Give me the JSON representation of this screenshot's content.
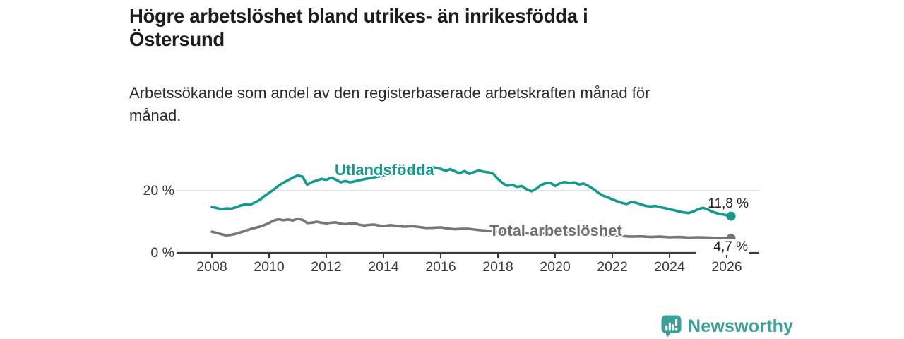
{
  "header": {
    "title_lines": [
      "Högre arbetslöshet bland utrikes- än inrikesfödda i",
      "Östersund"
    ],
    "subtitle_lines": [
      "Arbetssökande som andel av den registerbaserade arbetskraften månad för",
      "månad."
    ]
  },
  "chart_data": {
    "type": "line",
    "title": "Högre arbetslöshet bland utrikes- än inrikesfödda i Östersund",
    "subtitle": "Arbetssökande som andel av den registerbaserade arbetskraften månad för månad.",
    "xlabel": "",
    "ylabel": "",
    "y_unit": "%",
    "x_range": [
      2008,
      2026.2
    ],
    "ylim": [
      0,
      29
    ],
    "grid": "horizontal gridline at 20% only",
    "legend": "inline labels on lines with end-value annotations",
    "x_ticks": [
      {
        "year": 2008,
        "label": "2008"
      },
      {
        "year": 2010,
        "label": "2010"
      },
      {
        "year": 2012,
        "label": "2012"
      },
      {
        "year": 2014,
        "label": "2014"
      },
      {
        "year": 2016,
        "label": "2016"
      },
      {
        "year": 2018,
        "label": "2018"
      },
      {
        "year": 2020,
        "label": "2020"
      },
      {
        "year": 2022,
        "label": "2022"
      },
      {
        "year": 2024,
        "label": "2024"
      },
      {
        "year": 2026,
        "label": "2026"
      }
    ],
    "y_ticks": [
      {
        "value": 0,
        "label": "0 %"
      },
      {
        "value": 20,
        "label": "20 %"
      }
    ],
    "series": [
      {
        "name": "Utlandsfödda",
        "color": "#149a8d",
        "end_label": "11,8 %",
        "end_value": 11.8,
        "points": [
          [
            2008.0,
            14.8
          ],
          [
            2008.17,
            14.4
          ],
          [
            2008.33,
            14.1
          ],
          [
            2008.5,
            14.3
          ],
          [
            2008.67,
            14.2
          ],
          [
            2008.83,
            14.6
          ],
          [
            2009.0,
            15.2
          ],
          [
            2009.17,
            15.6
          ],
          [
            2009.33,
            15.4
          ],
          [
            2009.5,
            16.2
          ],
          [
            2009.67,
            17.0
          ],
          [
            2009.83,
            18.2
          ],
          [
            2010.0,
            19.3
          ],
          [
            2010.17,
            20.4
          ],
          [
            2010.33,
            21.6
          ],
          [
            2010.5,
            22.6
          ],
          [
            2010.67,
            23.4
          ],
          [
            2010.83,
            24.2
          ],
          [
            2011.0,
            24.9
          ],
          [
            2011.17,
            24.5
          ],
          [
            2011.33,
            21.9
          ],
          [
            2011.5,
            22.8
          ],
          [
            2011.67,
            23.3
          ],
          [
            2011.83,
            23.8
          ],
          [
            2012.0,
            23.5
          ],
          [
            2012.17,
            24.2
          ],
          [
            2012.33,
            23.6
          ],
          [
            2012.5,
            22.7
          ],
          [
            2012.67,
            23.1
          ],
          [
            2012.83,
            22.7
          ],
          [
            2013.0,
            23.0
          ],
          [
            2013.17,
            23.4
          ],
          [
            2013.33,
            23.7
          ],
          [
            2013.5,
            24.0
          ],
          [
            2013.67,
            24.3
          ],
          [
            2013.83,
            24.6
          ],
          [
            2014.0,
            24.9
          ],
          [
            2014.25,
            25.3
          ],
          [
            2014.5,
            25.7
          ],
          [
            2014.75,
            26.1
          ],
          [
            2015.0,
            26.4
          ],
          [
            2015.25,
            26.8
          ],
          [
            2015.5,
            27.1
          ],
          [
            2015.75,
            27.5
          ],
          [
            2016.0,
            27.0
          ],
          [
            2016.17,
            26.4
          ],
          [
            2016.33,
            26.9
          ],
          [
            2016.5,
            26.2
          ],
          [
            2016.67,
            25.6
          ],
          [
            2016.83,
            26.3
          ],
          [
            2017.0,
            25.4
          ],
          [
            2017.17,
            26.0
          ],
          [
            2017.33,
            26.5
          ],
          [
            2017.5,
            26.1
          ],
          [
            2017.67,
            25.9
          ],
          [
            2017.83,
            25.5
          ],
          [
            2018.0,
            23.8
          ],
          [
            2018.17,
            22.4
          ],
          [
            2018.33,
            21.6
          ],
          [
            2018.5,
            21.9
          ],
          [
            2018.67,
            21.2
          ],
          [
            2018.83,
            21.5
          ],
          [
            2019.0,
            20.5
          ],
          [
            2019.17,
            19.8
          ],
          [
            2019.33,
            20.6
          ],
          [
            2019.5,
            21.8
          ],
          [
            2019.67,
            22.4
          ],
          [
            2019.83,
            22.6
          ],
          [
            2020.0,
            21.5
          ],
          [
            2020.17,
            22.4
          ],
          [
            2020.33,
            22.8
          ],
          [
            2020.5,
            22.5
          ],
          [
            2020.67,
            22.7
          ],
          [
            2020.83,
            22.0
          ],
          [
            2021.0,
            22.3
          ],
          [
            2021.17,
            21.5
          ],
          [
            2021.33,
            20.6
          ],
          [
            2021.5,
            19.4
          ],
          [
            2021.67,
            18.4
          ],
          [
            2021.83,
            17.9
          ],
          [
            2022.0,
            17.2
          ],
          [
            2022.17,
            16.6
          ],
          [
            2022.33,
            16.1
          ],
          [
            2022.5,
            15.7
          ],
          [
            2022.67,
            16.4
          ],
          [
            2022.83,
            16.1
          ],
          [
            2023.0,
            15.6
          ],
          [
            2023.17,
            15.1
          ],
          [
            2023.33,
            14.9
          ],
          [
            2023.5,
            15.1
          ],
          [
            2023.67,
            14.7
          ],
          [
            2023.83,
            14.4
          ],
          [
            2024.0,
            14.0
          ],
          [
            2024.17,
            13.7
          ],
          [
            2024.33,
            13.3
          ],
          [
            2024.5,
            13.0
          ],
          [
            2024.67,
            12.8
          ],
          [
            2024.83,
            13.3
          ],
          [
            2025.0,
            14.0
          ],
          [
            2025.17,
            14.5
          ],
          [
            2025.33,
            14.0
          ],
          [
            2025.5,
            13.2
          ],
          [
            2025.67,
            12.7
          ],
          [
            2025.83,
            12.4
          ],
          [
            2026.15,
            11.8
          ]
        ]
      },
      {
        "name": "Total arbetslöshet",
        "color": "#767676",
        "end_label": "4,7 %",
        "end_value": 4.7,
        "points": [
          [
            2008.0,
            6.8
          ],
          [
            2008.17,
            6.4
          ],
          [
            2008.33,
            6.0
          ],
          [
            2008.5,
            5.6
          ],
          [
            2008.67,
            5.8
          ],
          [
            2008.83,
            6.1
          ],
          [
            2009.0,
            6.6
          ],
          [
            2009.17,
            7.1
          ],
          [
            2009.33,
            7.6
          ],
          [
            2009.5,
            8.0
          ],
          [
            2009.67,
            8.4
          ],
          [
            2009.83,
            8.9
          ],
          [
            2010.0,
            9.6
          ],
          [
            2010.17,
            10.4
          ],
          [
            2010.33,
            10.8
          ],
          [
            2010.5,
            10.5
          ],
          [
            2010.67,
            10.7
          ],
          [
            2010.83,
            10.4
          ],
          [
            2011.0,
            11.0
          ],
          [
            2011.17,
            10.6
          ],
          [
            2011.33,
            9.6
          ],
          [
            2011.5,
            9.7
          ],
          [
            2011.67,
            10.0
          ],
          [
            2011.83,
            9.7
          ],
          [
            2012.0,
            9.5
          ],
          [
            2012.17,
            9.7
          ],
          [
            2012.33,
            9.8
          ],
          [
            2012.5,
            9.4
          ],
          [
            2012.67,
            9.2
          ],
          [
            2012.83,
            9.4
          ],
          [
            2013.0,
            9.5
          ],
          [
            2013.17,
            9.0
          ],
          [
            2013.33,
            8.8
          ],
          [
            2013.5,
            9.0
          ],
          [
            2013.67,
            9.1
          ],
          [
            2013.83,
            8.8
          ],
          [
            2014.0,
            8.6
          ],
          [
            2014.25,
            8.9
          ],
          [
            2014.5,
            8.6
          ],
          [
            2014.75,
            8.4
          ],
          [
            2015.0,
            8.6
          ],
          [
            2015.25,
            8.3
          ],
          [
            2015.5,
            8.0
          ],
          [
            2015.75,
            8.1
          ],
          [
            2016.0,
            8.2
          ],
          [
            2016.25,
            7.8
          ],
          [
            2016.5,
            7.6
          ],
          [
            2016.75,
            7.7
          ],
          [
            2017.0,
            7.7
          ],
          [
            2017.25,
            7.4
          ],
          [
            2017.5,
            7.2
          ],
          [
            2017.75,
            7.0
          ],
          [
            2018.0,
            6.8
          ],
          [
            2018.5,
            6.5
          ],
          [
            2019.0,
            6.3
          ],
          [
            2019.5,
            6.2
          ],
          [
            2020.0,
            6.4
          ],
          [
            2020.5,
            6.6
          ],
          [
            2021.0,
            6.3
          ],
          [
            2021.5,
            5.9
          ],
          [
            2022.0,
            5.6
          ],
          [
            2022.5,
            5.3
          ],
          [
            2022.67,
            5.2
          ],
          [
            2023.0,
            5.3
          ],
          [
            2023.33,
            5.1
          ],
          [
            2023.67,
            5.2
          ],
          [
            2024.0,
            5.0
          ],
          [
            2024.33,
            5.1
          ],
          [
            2024.67,
            4.9
          ],
          [
            2025.0,
            5.0
          ],
          [
            2025.33,
            4.9
          ],
          [
            2025.67,
            4.8
          ],
          [
            2026.15,
            4.7
          ]
        ]
      }
    ],
    "colors": {
      "accent_teal": "#149a8d",
      "line_gray": "#767676",
      "axis": "#3c3c3c",
      "gridline": "#d9d9d9"
    }
  },
  "footer": {
    "brand": "Newsworthy",
    "brand_color": "#3ba197",
    "logo_icon": "speech-bubble-with-bar-chart-and-exclamation"
  }
}
